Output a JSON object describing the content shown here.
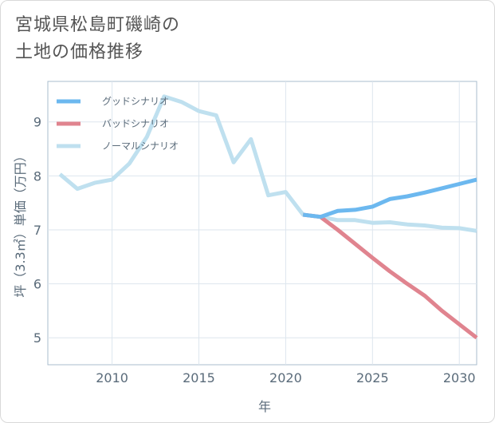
{
  "title_lines": [
    "宮城県松島町磯崎の",
    "土地の価格推移"
  ],
  "chart_data": {
    "type": "line",
    "xlabel": "年",
    "ylabel": "坪（3.3㎡）単価（万円）",
    "xlim": [
      2006.3,
      2031
    ],
    "ylim": [
      4.5,
      9.75
    ],
    "xticks": [
      2010,
      2015,
      2020,
      2025,
      2030
    ],
    "yticks": [
      5,
      6,
      7,
      8,
      9
    ],
    "grid": true,
    "legend_position": "top-left",
    "series": [
      {
        "name": "グッドシナリオ",
        "color": "#6cb8ef",
        "width": 5,
        "x": [
          2021,
          2022,
          2023,
          2024,
          2025,
          2026,
          2027,
          2028,
          2029,
          2030,
          2031
        ],
        "y": [
          7.28,
          7.24,
          7.35,
          7.37,
          7.43,
          7.57,
          7.62,
          7.69,
          7.77,
          7.85,
          7.93
        ]
      },
      {
        "name": "バッドシナリオ",
        "color": "#e0848f",
        "width": 5,
        "x": [
          2021,
          2022,
          2023,
          2024,
          2025,
          2026,
          2027,
          2028,
          2029,
          2030,
          2031
        ],
        "y": [
          7.28,
          7.24,
          7.0,
          6.74,
          6.48,
          6.23,
          6.0,
          5.78,
          5.5,
          5.25,
          5.0
        ]
      },
      {
        "name": "ノーマルシナリオ",
        "color": "#bfe0ef",
        "width": 5,
        "x": [
          2007,
          2008,
          2009,
          2010,
          2011,
          2012,
          2013,
          2014,
          2015,
          2016,
          2017,
          2018,
          2019,
          2020,
          2021,
          2022,
          2023,
          2024,
          2025,
          2026,
          2027,
          2028,
          2029,
          2030,
          2031
        ],
        "y": [
          8.03,
          7.76,
          7.87,
          7.93,
          8.23,
          8.72,
          9.47,
          9.37,
          9.2,
          9.12,
          8.25,
          8.68,
          7.64,
          7.7,
          7.28,
          7.24,
          7.18,
          7.18,
          7.13,
          7.14,
          7.1,
          7.08,
          7.04,
          7.03,
          6.98
        ]
      }
    ]
  }
}
